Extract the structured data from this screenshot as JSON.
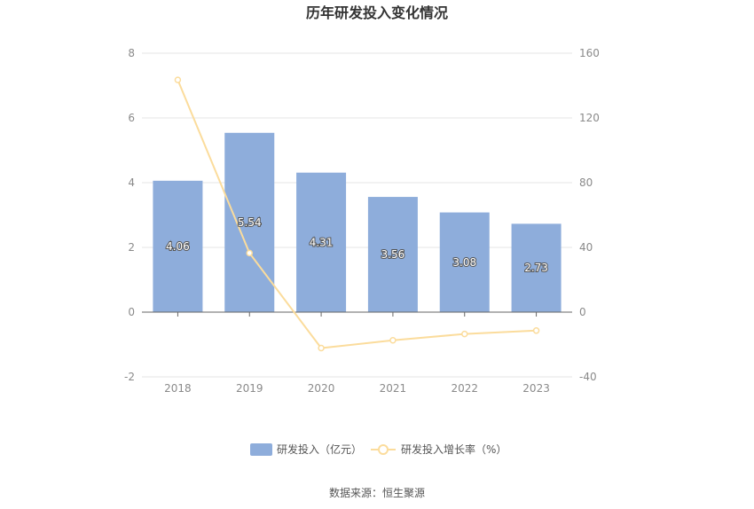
{
  "chart_data": {
    "type": "bar",
    "title": "历年研发投入变化情况",
    "categories": [
      "2018",
      "2019",
      "2020",
      "2021",
      "2022",
      "2023"
    ],
    "series": [
      {
        "name": "研发投入（亿元）",
        "type": "bar",
        "axis": "left",
        "values": [
          4.06,
          5.54,
          4.31,
          3.56,
          3.08,
          2.73
        ],
        "labels": [
          "4.06",
          "5.54",
          "4.31",
          "3.56",
          "3.08",
          "2.73"
        ]
      },
      {
        "name": "研发投入增长率（%）",
        "type": "line",
        "axis": "right",
        "values": [
          143.5,
          36.5,
          -22.2,
          -17.4,
          -13.5,
          -11.4
        ]
      }
    ],
    "y_left": {
      "min": -2,
      "max": 8,
      "ticks": [
        "-2",
        "0",
        "2",
        "4",
        "6",
        "8"
      ]
    },
    "y_right": {
      "min": -40,
      "max": 160,
      "ticks": [
        "-40",
        "0",
        "40",
        "80",
        "120",
        "160"
      ]
    },
    "legend_position": "bottom",
    "grid": true,
    "colors": {
      "bar": "#8eaddb",
      "line": "#fbdc9c",
      "grid": "#e6e6e6",
      "axis": "#666666"
    }
  },
  "source": "数据来源：恒生聚源"
}
